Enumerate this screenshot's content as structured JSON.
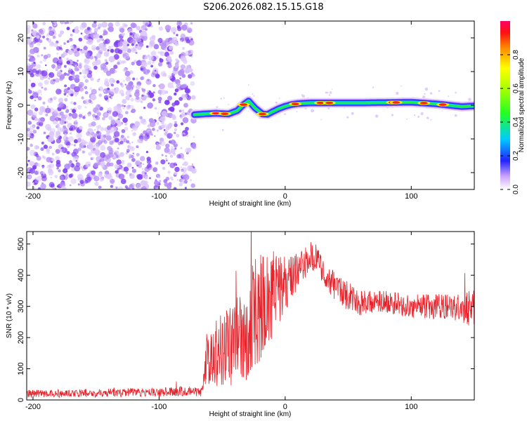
{
  "title": "S206.2026.082.15.15.G18",
  "chart_data": [
    {
      "type": "heatmap",
      "name": "spectrogram",
      "xlabel": "Height of straight line (km)",
      "ylabel": "Frequency (Hz)",
      "xlim": [
        -205,
        150
      ],
      "ylim": [
        -25,
        25
      ],
      "xticks": [
        -200,
        -100,
        0,
        100
      ],
      "yticks": [
        -20,
        -10,
        0,
        10,
        20
      ],
      "noise_region_x": [
        -205,
        -72
      ],
      "colorbar": {
        "label": "Normalized spectral amplitude",
        "range": [
          0,
          1
        ],
        "ticks": [
          0.0,
          0.2,
          0.4,
          0.6,
          0.8
        ]
      },
      "ridge": {
        "x": [
          -72,
          -65,
          -55,
          -45,
          -38,
          -33,
          -29,
          -24,
          -18,
          -14,
          -10,
          -5,
          0,
          5,
          10,
          20,
          30,
          40,
          60,
          80,
          100,
          120,
          140,
          150
        ],
        "freq": [
          -2.8,
          -2.6,
          -2.4,
          -2.6,
          -1.6,
          0.2,
          1.3,
          -0.8,
          -2.6,
          -2.7,
          -1.9,
          -1.0,
          -0.3,
          0.2,
          0.5,
          0.7,
          0.7,
          0.7,
          0.7,
          0.8,
          0.9,
          0.4,
          -0.4,
          -0.2
        ]
      },
      "peaks_x": [
        -55,
        -48,
        -33,
        -18,
        8,
        28,
        35,
        85,
        88,
        110,
        125
      ]
    },
    {
      "type": "line",
      "name": "snr",
      "xlabel": "Height of straight line (km)",
      "ylabel": "SNR (10 * v/v)",
      "xlim": [
        -205,
        150
      ],
      "ylim": [
        0,
        540
      ],
      "xticks": [
        -200,
        -100,
        0,
        100
      ],
      "yticks": [
        0,
        100,
        200,
        300,
        400,
        500
      ],
      "color": "#e8222a",
      "envelope": {
        "x": [
          -205,
          -150,
          -100,
          -80,
          -66,
          -62,
          -55,
          -45,
          -35,
          -25,
          -20,
          -10,
          0,
          10,
          20,
          25,
          30,
          40,
          50,
          60,
          80,
          100,
          120,
          140,
          150
        ],
        "mean": [
          20,
          22,
          25,
          28,
          25,
          140,
          150,
          170,
          220,
          260,
          300,
          330,
          370,
          420,
          460,
          455,
          410,
          360,
          330,
          310,
          315,
          300,
          300,
          295,
          300
        ],
        "amp": [
          12,
          13,
          14,
          16,
          14,
          90,
          110,
          130,
          160,
          190,
          180,
          140,
          90,
          60,
          50,
          45,
          40,
          45,
          50,
          40,
          35,
          40,
          40,
          45,
          70
        ]
      }
    }
  ]
}
